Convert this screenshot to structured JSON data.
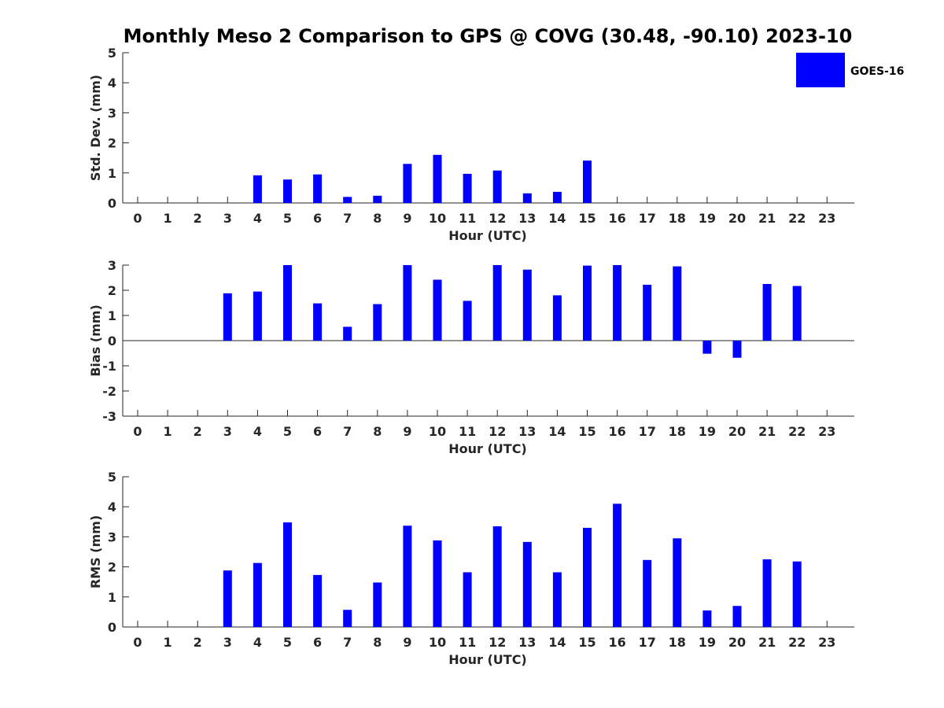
{
  "title": "Monthly Meso 2 Comparison to GPS @ COVG (30.48, -90.10) 2023-10",
  "legend": {
    "label": "GOES-16",
    "color": "#0000ff"
  },
  "chart_data": [
    {
      "type": "bar",
      "ylabel": "Std. Dev. (mm)",
      "xlabel": "Hour (UTC)",
      "categories": [
        "0",
        "1",
        "2",
        "3",
        "4",
        "5",
        "6",
        "7",
        "8",
        "9",
        "10",
        "11",
        "12",
        "13",
        "14",
        "15",
        "16",
        "17",
        "18",
        "19",
        "20",
        "21",
        "22",
        "23"
      ],
      "ylim": [
        0,
        5
      ],
      "yticks": [
        0,
        1,
        2,
        3,
        4,
        5
      ],
      "series": [
        {
          "name": "GOES-16",
          "values": [
            null,
            null,
            null,
            null,
            0.92,
            0.78,
            0.95,
            0.2,
            0.24,
            1.3,
            1.6,
            0.97,
            1.08,
            0.32,
            0.37,
            1.41,
            null,
            null,
            null,
            null,
            null,
            null,
            null,
            null
          ]
        }
      ]
    },
    {
      "type": "bar",
      "ylabel": "Bias (mm)",
      "xlabel": "Hour (UTC)",
      "categories": [
        "0",
        "1",
        "2",
        "3",
        "4",
        "5",
        "6",
        "7",
        "8",
        "9",
        "10",
        "11",
        "12",
        "13",
        "14",
        "15",
        "16",
        "17",
        "18",
        "19",
        "20",
        "21",
        "22",
        "23"
      ],
      "ylim": [
        -3,
        3
      ],
      "yticks": [
        -3,
        -2,
        -1,
        0,
        1,
        2,
        3
      ],
      "zero_line": true,
      "series": [
        {
          "name": "GOES-16",
          "values": [
            null,
            null,
            null,
            1.88,
            1.95,
            3.0,
            1.48,
            0.55,
            1.45,
            3.0,
            2.42,
            1.58,
            3.0,
            2.82,
            1.8,
            2.98,
            3.0,
            2.22,
            2.95,
            -0.52,
            -0.68,
            2.25,
            2.17,
            null
          ]
        }
      ]
    },
    {
      "type": "bar",
      "ylabel": "RMS (mm)",
      "xlabel": "Hour (UTC)",
      "categories": [
        "0",
        "1",
        "2",
        "3",
        "4",
        "5",
        "6",
        "7",
        "8",
        "9",
        "10",
        "11",
        "12",
        "13",
        "14",
        "15",
        "16",
        "17",
        "18",
        "19",
        "20",
        "21",
        "22",
        "23"
      ],
      "ylim": [
        0,
        5
      ],
      "yticks": [
        0,
        1,
        2,
        3,
        4,
        5
      ],
      "series": [
        {
          "name": "GOES-16",
          "values": [
            null,
            null,
            null,
            1.88,
            2.13,
            3.48,
            1.73,
            0.57,
            1.48,
            3.37,
            2.88,
            1.82,
            3.35,
            2.83,
            1.82,
            3.3,
            4.1,
            2.23,
            2.95,
            0.55,
            0.7,
            2.25,
            2.18,
            null
          ]
        }
      ]
    }
  ]
}
